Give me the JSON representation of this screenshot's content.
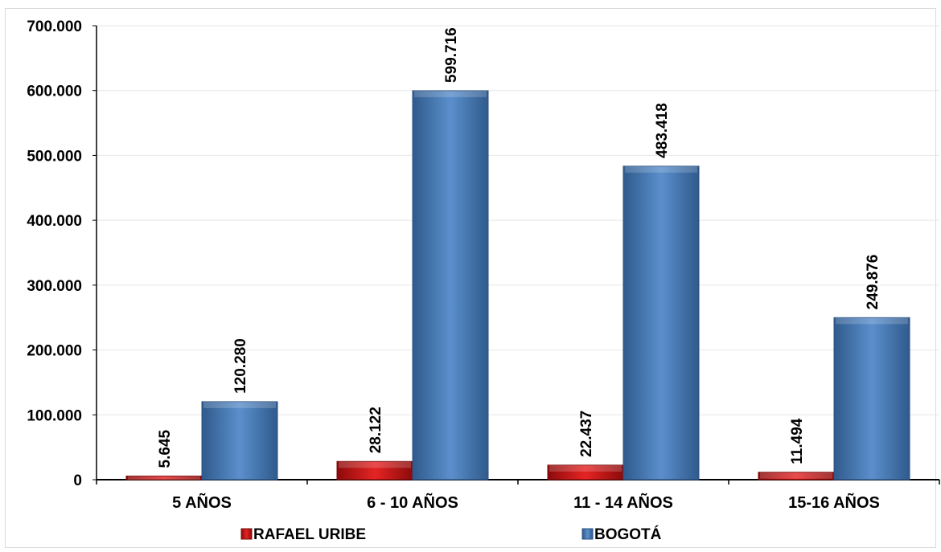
{
  "chart_data": {
    "type": "bar",
    "categories": [
      "5 AÑOS",
      "6 - 10 AÑOS",
      "11 - 14 AÑOS",
      "15-16 AÑOS"
    ],
    "series": [
      {
        "name": "RAFAEL URIBE",
        "values": [
          5645,
          28122,
          22437,
          11494
        ],
        "labels": [
          "5.645",
          "28.122",
          "22.437",
          "11.494"
        ],
        "color": "#d81e1e"
      },
      {
        "name": "BOGOTÁ",
        "values": [
          120280,
          599716,
          483418,
          249876
        ],
        "labels": [
          "120.280",
          "599.716",
          "483.418",
          "249.876"
        ],
        "color": "#4f81bd"
      }
    ],
    "yticks": [
      0,
      100000,
      200000,
      300000,
      400000,
      500000,
      600000,
      700000
    ],
    "ytick_labels": [
      "0",
      "100.000",
      "200.000",
      "300.000",
      "400.000",
      "500.000",
      "600.000",
      "700.000"
    ],
    "ylim": [
      0,
      700000
    ],
    "grid": true,
    "legend_position": "bottom"
  }
}
